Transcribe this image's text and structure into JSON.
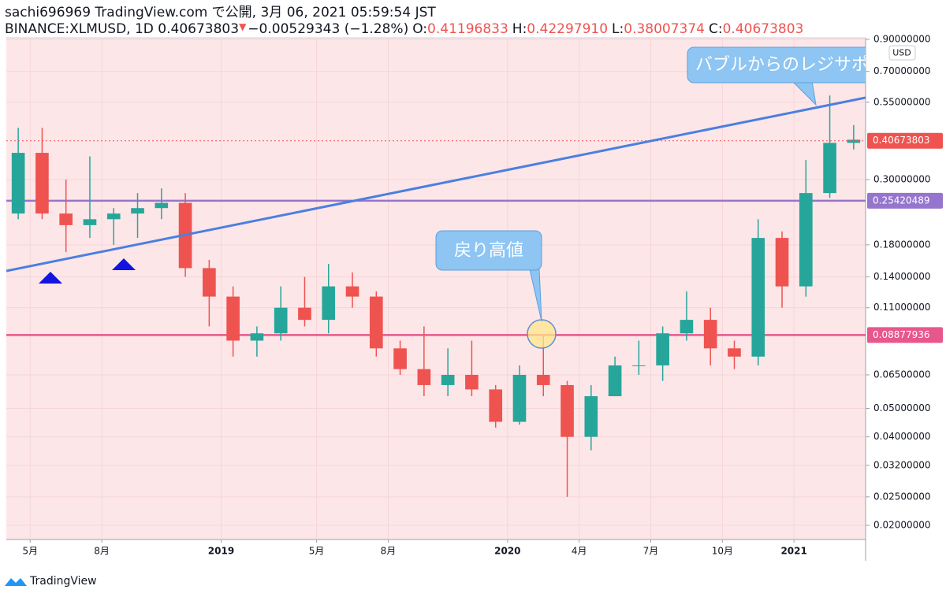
{
  "header": {
    "line1": "sachi696969 TradingView.com で公開, 3月 06, 2021 05:59:54 JST",
    "symbol": "BINANCE:XLMUSD, 1D 0.40673803",
    "change": "−0.00529343 (−1.28%)",
    "ohlc": [
      {
        "label": "O:",
        "value": "0.41196833"
      },
      {
        "label": "H:",
        "value": "0.42297910"
      },
      {
        "label": "L:",
        "value": "0.38007374"
      },
      {
        "label": "C:",
        "value": "0.40673803"
      }
    ]
  },
  "chart_data": {
    "type": "candlestick",
    "log_scale": true,
    "currency": "USD",
    "up_color": "#26a69a",
    "down_color": "#ef5350",
    "x": [
      "2018-04",
      "2018-05",
      "2018-06",
      "2018-07",
      "2018-08",
      "2018-09",
      "2018-10",
      "2018-11",
      "2018-12",
      "2019-01",
      "2019-02",
      "2019-03",
      "2019-04",
      "2019-05",
      "2019-06",
      "2019-07",
      "2019-08",
      "2019-09",
      "2019-10",
      "2019-11",
      "2019-12",
      "2020-01",
      "2020-02",
      "2020-03",
      "2020-04",
      "2020-05",
      "2020-06",
      "2020-07",
      "2020-08",
      "2020-09",
      "2020-10",
      "2020-11",
      "2020-12",
      "2021-01",
      "2021-02",
      "2021-03"
    ],
    "open": [
      0.23,
      0.37,
      0.23,
      0.21,
      0.22,
      0.23,
      0.24,
      0.25,
      0.15,
      0.12,
      0.085,
      0.09,
      0.11,
      0.1,
      0.13,
      0.12,
      0.08,
      0.068,
      0.06,
      0.065,
      0.058,
      0.045,
      0.065,
      0.06,
      0.04,
      0.055,
      0.07,
      0.07,
      0.09,
      0.1,
      0.08,
      0.075,
      0.19,
      0.13,
      0.27,
      0.4
    ],
    "high": [
      0.45,
      0.45,
      0.3,
      0.36,
      0.24,
      0.27,
      0.28,
      0.27,
      0.16,
      0.13,
      0.095,
      0.13,
      0.14,
      0.155,
      0.145,
      0.125,
      0.085,
      0.095,
      0.08,
      0.085,
      0.06,
      0.07,
      0.088,
      0.062,
      0.06,
      0.075,
      0.085,
      0.095,
      0.125,
      0.11,
      0.085,
      0.22,
      0.2,
      0.35,
      0.58,
      0.46
    ],
    "low": [
      0.22,
      0.22,
      0.17,
      0.19,
      0.18,
      0.19,
      0.22,
      0.14,
      0.095,
      0.075,
      0.075,
      0.085,
      0.095,
      0.09,
      0.11,
      0.075,
      0.065,
      0.055,
      0.055,
      0.055,
      0.043,
      0.044,
      0.055,
      0.025,
      0.036,
      0.055,
      0.065,
      0.062,
      0.085,
      0.07,
      0.068,
      0.07,
      0.11,
      0.12,
      0.26,
      0.38
    ],
    "close": [
      0.37,
      0.23,
      0.21,
      0.22,
      0.23,
      0.24,
      0.25,
      0.15,
      0.12,
      0.085,
      0.09,
      0.11,
      0.1,
      0.13,
      0.12,
      0.08,
      0.068,
      0.06,
      0.065,
      0.058,
      0.045,
      0.065,
      0.06,
      0.04,
      0.055,
      0.07,
      0.07,
      0.09,
      0.1,
      0.08,
      0.075,
      0.19,
      0.13,
      0.27,
      0.4,
      0.41
    ],
    "xlim": [
      "2018-04",
      "2021-04"
    ],
    "xticks": [
      {
        "value": "2018-05",
        "label": "5月"
      },
      {
        "value": "2018-08",
        "label": "8月"
      },
      {
        "value": "2019-01",
        "label": "2019"
      },
      {
        "value": "2019-05",
        "label": "5月"
      },
      {
        "value": "2019-08",
        "label": "8月"
      },
      {
        "value": "2020-01",
        "label": "2020"
      },
      {
        "value": "2020-04",
        "label": "4月"
      },
      {
        "value": "2020-07",
        "label": "7月"
      },
      {
        "value": "2020-10",
        "label": "10月"
      },
      {
        "value": "2021-01",
        "label": "2021"
      }
    ],
    "ylim": [
      0.0179,
      0.911
    ],
    "yticks": [
      {
        "value": 0.9,
        "label": "0.90000000"
      },
      {
        "value": 0.7,
        "label": "0.70000000"
      },
      {
        "value": 0.55,
        "label": "0.55000000"
      },
      {
        "value": 0.3,
        "label": "0.30000000"
      },
      {
        "value": 0.18,
        "label": "0.18000000"
      },
      {
        "value": 0.14,
        "label": "0.14000000"
      },
      {
        "value": 0.11,
        "label": "0.11000000"
      },
      {
        "value": 0.065,
        "label": "0.06500000"
      },
      {
        "value": 0.05,
        "label": "0.05000000"
      },
      {
        "value": 0.04,
        "label": "0.04000000"
      },
      {
        "value": 0.032,
        "label": "0.03200000"
      },
      {
        "value": 0.025,
        "label": "0.02500000"
      },
      {
        "value": 0.02,
        "label": "0.02000000"
      }
    ],
    "grid": true,
    "last_price": {
      "value": 0.40673803,
      "color": "#ef5350"
    },
    "hlines": [
      {
        "value": 0.25420489,
        "color": "#9575cd"
      },
      {
        "value": 0.08877936,
        "color": "#e8578b"
      }
    ],
    "annotations": [
      "バブルからのレジサポ",
      "戻り高値"
    ]
  },
  "footer": "TradingView"
}
